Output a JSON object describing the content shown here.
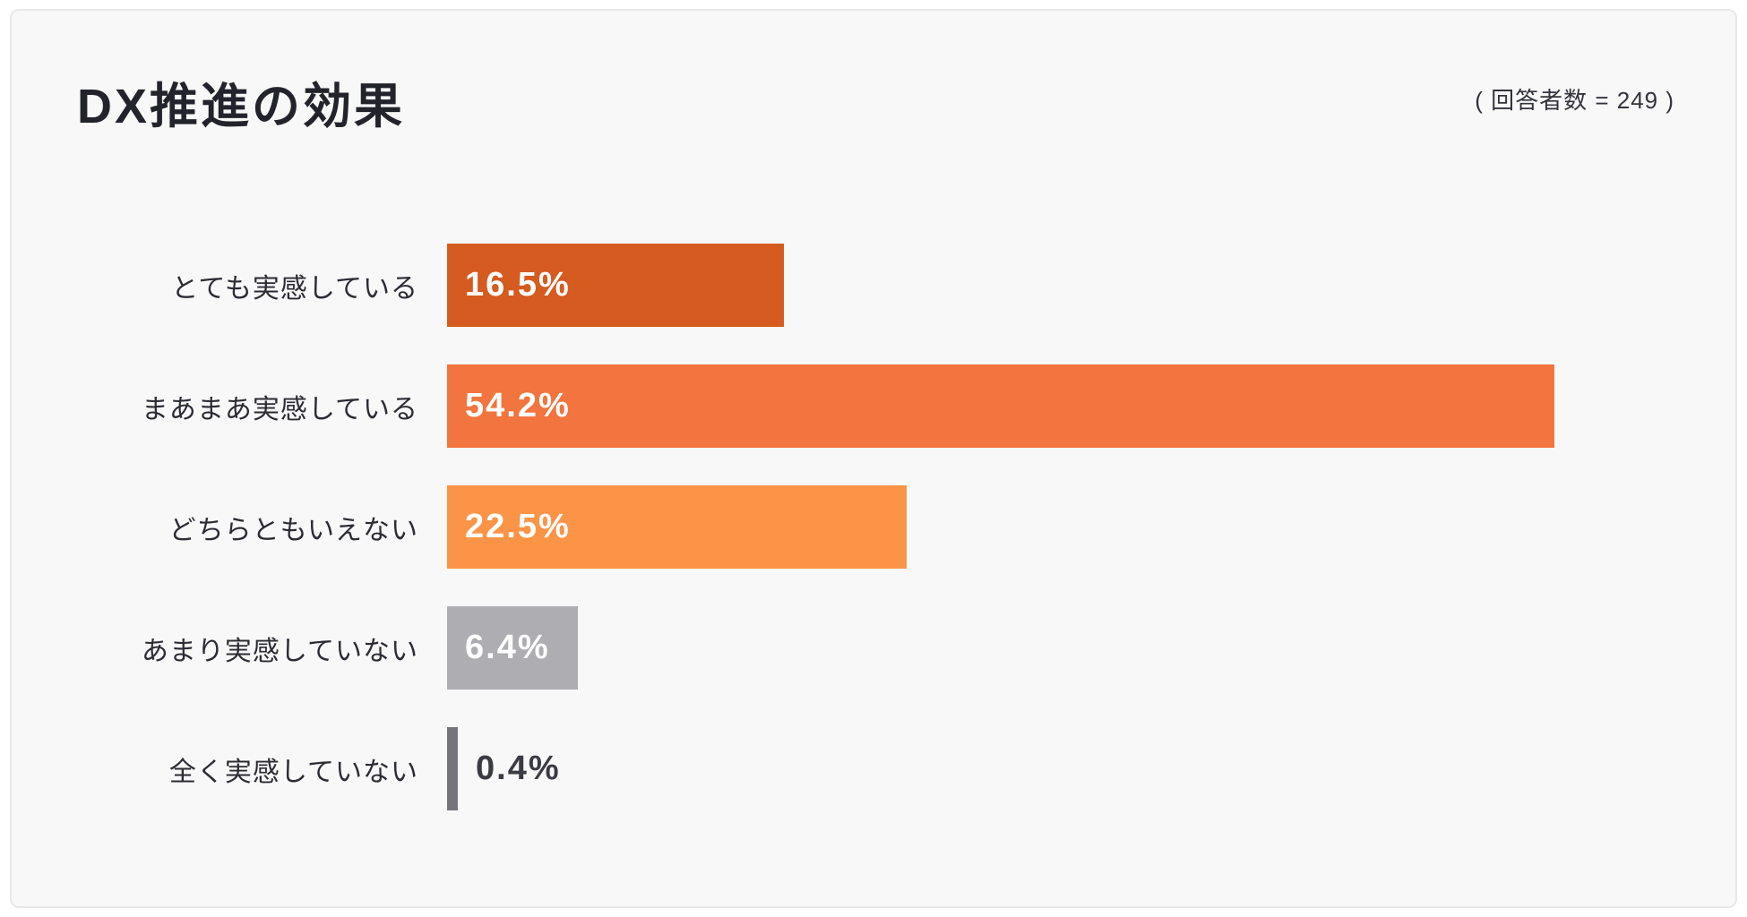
{
  "header": {
    "title": "DX推進の効果",
    "respondents_note": "( 回答者数 = 249 )"
  },
  "chart_data": {
    "type": "bar",
    "orientation": "horizontal",
    "title": "DX推進の効果",
    "respondents": 249,
    "categories": [
      "とても実感している",
      "まあまあ実感している",
      "どちらともいえない",
      "あまり実感していない",
      "全く実感していない"
    ],
    "values": [
      16.5,
      54.2,
      22.5,
      6.4,
      0.4
    ],
    "value_labels": [
      "16.5%",
      "54.2%",
      "22.5%",
      "6.4%",
      "0.4%"
    ],
    "bar_colors": [
      "#d55b20",
      "#f2743e",
      "#fb9447",
      "#aeaeb2",
      "#75747b"
    ],
    "xlim": [
      0,
      60
    ],
    "grid": false,
    "legend": false,
    "unit": "%"
  },
  "colors": {
    "card_background": "#f8f8f9",
    "card_border": "#e8e8ea",
    "title_text": "#23232b",
    "label_text": "#2b2b33",
    "value_text_inside": "#ffffff",
    "value_text_outside": "#3b3b43"
  }
}
